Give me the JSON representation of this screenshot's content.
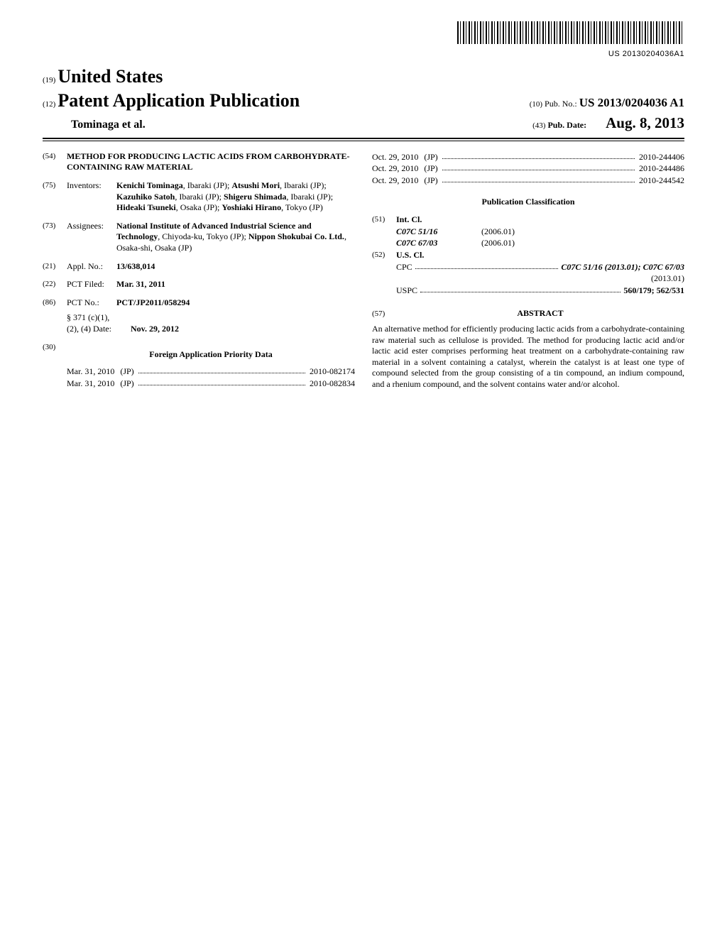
{
  "barcode_text": "US 20130204036A1",
  "header": {
    "country_num": "(19)",
    "country": "United States",
    "pub_num": "(12)",
    "pub_type": "Patent Application Publication",
    "pubno_num": "(10)",
    "pubno_label": "Pub. No.:",
    "pubno_value": "US 2013/0204036 A1",
    "author": "Tominaga et al.",
    "date_num": "(43)",
    "date_label": "Pub. Date:",
    "date_value": "Aug. 8, 2013"
  },
  "title": {
    "num": "(54)",
    "text": "METHOD FOR PRODUCING LACTIC ACIDS FROM CARBOHYDRATE-CONTAINING RAW MATERIAL"
  },
  "inventors": {
    "num": "(75)",
    "label": "Inventors:",
    "list": [
      {
        "name": "Kenichi Tominaga",
        "loc": "Ibaraki (JP)"
      },
      {
        "name": "Atsushi Mori",
        "loc": "Ibaraki (JP)"
      },
      {
        "name": "Kazuhiko Satoh",
        "loc": "Ibaraki (JP)"
      },
      {
        "name": "Shigeru Shimada",
        "loc": "Ibaraki (JP)"
      },
      {
        "name": "Hideaki Tsuneki",
        "loc": "Osaka (JP)"
      },
      {
        "name": "Yoshiaki Hirano",
        "loc": "Tokyo (JP)"
      }
    ]
  },
  "assignees": {
    "num": "(73)",
    "label": "Assignees:",
    "text": "National Institute of Advanced Industrial Science and Technology",
    "loc1": "Chiyoda-ku, Tokyo (JP);",
    "text2": "Nippon Shokubai Co. Ltd.",
    "loc2": "Osaka-shi, Osaka (JP)"
  },
  "appl": {
    "num": "(21)",
    "label": "Appl. No.:",
    "value": "13/638,014"
  },
  "filed": {
    "num": "(22)",
    "label": "PCT Filed:",
    "value": "Mar. 31, 2011"
  },
  "pct": {
    "num": "(86)",
    "label": "PCT No.:",
    "value": "PCT/JP2011/058294"
  },
  "s371": {
    "label": "§ 371 (c)(1),\n(2), (4) Date:",
    "value": "Nov. 29, 2012"
  },
  "foreign": {
    "num": "(30)",
    "heading": "Foreign Application Priority Data",
    "rows": [
      {
        "date": "Mar. 31, 2010",
        "cc": "(JP)",
        "no": "2010-082174"
      },
      {
        "date": "Mar. 31, 2010",
        "cc": "(JP)",
        "no": "2010-082834"
      },
      {
        "date": "Oct. 29, 2010",
        "cc": "(JP)",
        "no": "2010-244406"
      },
      {
        "date": "Oct. 29, 2010",
        "cc": "(JP)",
        "no": "2010-244486"
      },
      {
        "date": "Oct. 29, 2010",
        "cc": "(JP)",
        "no": "2010-244542"
      }
    ]
  },
  "classification": {
    "heading": "Publication Classification",
    "int_num": "(51)",
    "int_label": "Int. Cl.",
    "int_rows": [
      {
        "code": "C07C 51/16",
        "ver": "(2006.01)"
      },
      {
        "code": "C07C 67/03",
        "ver": "(2006.01)"
      }
    ],
    "us_num": "(52)",
    "us_label": "U.S. Cl.",
    "cpc_label": "CPC",
    "cpc_value": "C07C 51/16 (2013.01); C07C 67/03",
    "cpc_tail": "(2013.01)",
    "uspc_label": "USPC",
    "uspc_value": "560/179; 562/531"
  },
  "abstract": {
    "num": "(57)",
    "heading": "ABSTRACT",
    "body": "An alternative method for efficiently producing lactic acids from a carbohydrate-containing raw material such as cellulose is provided. The method for producing lactic acid and/or lactic acid ester comprises performing heat treatment on a carbohydrate-containing raw material in a solvent containing a catalyst, wherein the catalyst is at least one type of compound selected from the group consisting of a tin compound, an indium compound, and a rhenium compound, and the solvent contains water and/or alcohol."
  }
}
